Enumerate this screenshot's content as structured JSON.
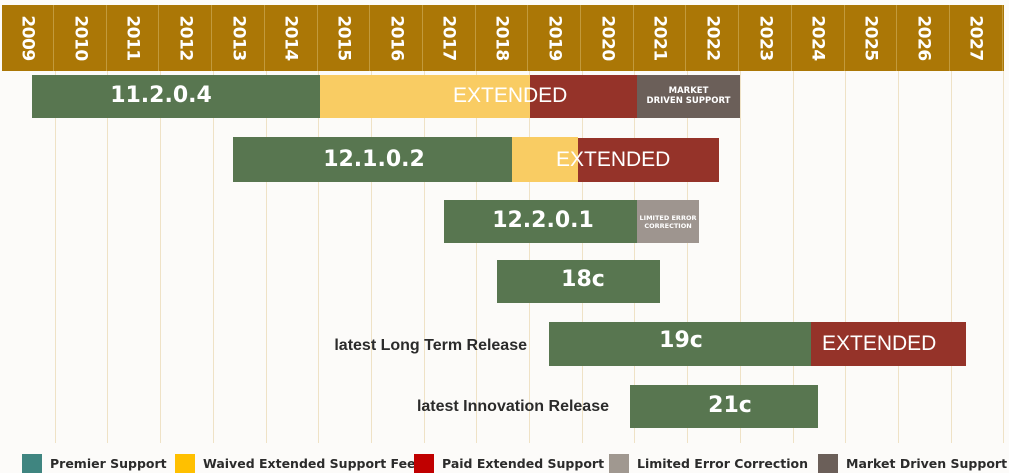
{
  "chart_data": {
    "type": "gantt-timeline",
    "title": "",
    "x_axis": {
      "label": "",
      "ticks": [
        "2009",
        "2010",
        "2011",
        "2012",
        "2013",
        "2014",
        "2015",
        "2016",
        "2017",
        "2018",
        "2019",
        "2020",
        "2021",
        "2022",
        "2023",
        "2024",
        "2025",
        "2026",
        "2027"
      ],
      "range": [
        2009,
        2028
      ]
    },
    "grid": true,
    "legend_position": "bottom",
    "legend": [
      {
        "key": "premier",
        "label": "Premier Support",
        "color": "#3f8580"
      },
      {
        "key": "waived",
        "label": "Waived Extended Support Fee",
        "color": "#ffc000"
      },
      {
        "key": "paid",
        "label": "Paid Extended Support",
        "color": "#c00000"
      },
      {
        "key": "lec",
        "label": "Limited Error Correction",
        "color": "#a09890"
      },
      {
        "key": "mds",
        "label": "Market Driven Support",
        "color": "#6b5f59"
      }
    ],
    "rows": [
      {
        "release": "11.2.0.4",
        "row_label": "",
        "segments": [
          {
            "type": "premier",
            "start": 2009.6,
            "end": 2015.0,
            "label": "11.2.0.4"
          },
          {
            "type": "waived",
            "start": 2015.0,
            "end": 2019.0,
            "label": ""
          },
          {
            "type": "paid",
            "start": 2019.0,
            "end": 2021.0,
            "label": ""
          },
          {
            "type": "mds",
            "start": 2021.0,
            "end": 2022.95,
            "label": "MARKET DRIVEN SUPPORT"
          }
        ],
        "overlay_label": "EXTENDED"
      },
      {
        "release": "12.1.0.2",
        "row_label": "",
        "segments": [
          {
            "type": "premier",
            "start": 2013.4,
            "end": 2018.6,
            "label": "12.1.0.2"
          },
          {
            "type": "waived",
            "start": 2018.6,
            "end": 2019.9,
            "label": ""
          },
          {
            "type": "paid",
            "start": 2019.9,
            "end": 2022.55,
            "label": ""
          }
        ],
        "overlay_label": "EXTENDED"
      },
      {
        "release": "12.2.0.1",
        "row_label": "",
        "segments": [
          {
            "type": "premier",
            "start": 2017.4,
            "end": 2021.0,
            "label": "12.2.0.1"
          },
          {
            "type": "lec",
            "start": 2021.0,
            "end": 2022.2,
            "label": "LIMITED ERROR CORRECTION"
          }
        ]
      },
      {
        "release": "18c",
        "row_label": "",
        "segments": [
          {
            "type": "premier",
            "start": 2018.4,
            "end": 2021.45,
            "label": "18c"
          }
        ]
      },
      {
        "release": "19c",
        "row_label": "latest Long Term Release",
        "segments": [
          {
            "type": "premier",
            "start": 2019.4,
            "end": 2024.35,
            "label": "19c"
          },
          {
            "type": "paid",
            "start": 2024.35,
            "end": 2027.3,
            "label": "EXTENDED"
          }
        ]
      },
      {
        "release": "21c",
        "row_label": "latest Innovation Release",
        "segments": [
          {
            "type": "premier",
            "start": 2020.9,
            "end": 2024.5,
            "label": "21c"
          }
        ]
      }
    ]
  },
  "years": [
    "2009",
    "2010",
    "2011",
    "2012",
    "2013",
    "2014",
    "2015",
    "2016",
    "2017",
    "2018",
    "2019",
    "2020",
    "2021",
    "2022",
    "2023",
    "2024",
    "2025",
    "2026",
    "2027"
  ],
  "bars": {
    "r1": {
      "version": "11.2.0.4",
      "extended": "EXTENDED",
      "mds_line1": "MARKET",
      "mds_line2": "DRIVEN SUPPORT"
    },
    "r2": {
      "version": "12.1.0.2",
      "extended": "EXTENDED"
    },
    "r3": {
      "version": "12.2.0.1",
      "lec_line1": "LIMITED ERROR",
      "lec_line2": "CORRECTION"
    },
    "r4": {
      "version": "18c"
    },
    "r5": {
      "version": "19c",
      "extended": "EXTENDED",
      "row_label": "latest Long Term Release"
    },
    "r6": {
      "version": "21c",
      "row_label": "latest Innovation Release"
    }
  },
  "legend": {
    "premier": "Premier Support",
    "waived": "Waived Extended Support Fee",
    "paid": "Paid Extended Support",
    "lec": "Limited Error Correction",
    "mds": "Market Driven Support"
  }
}
